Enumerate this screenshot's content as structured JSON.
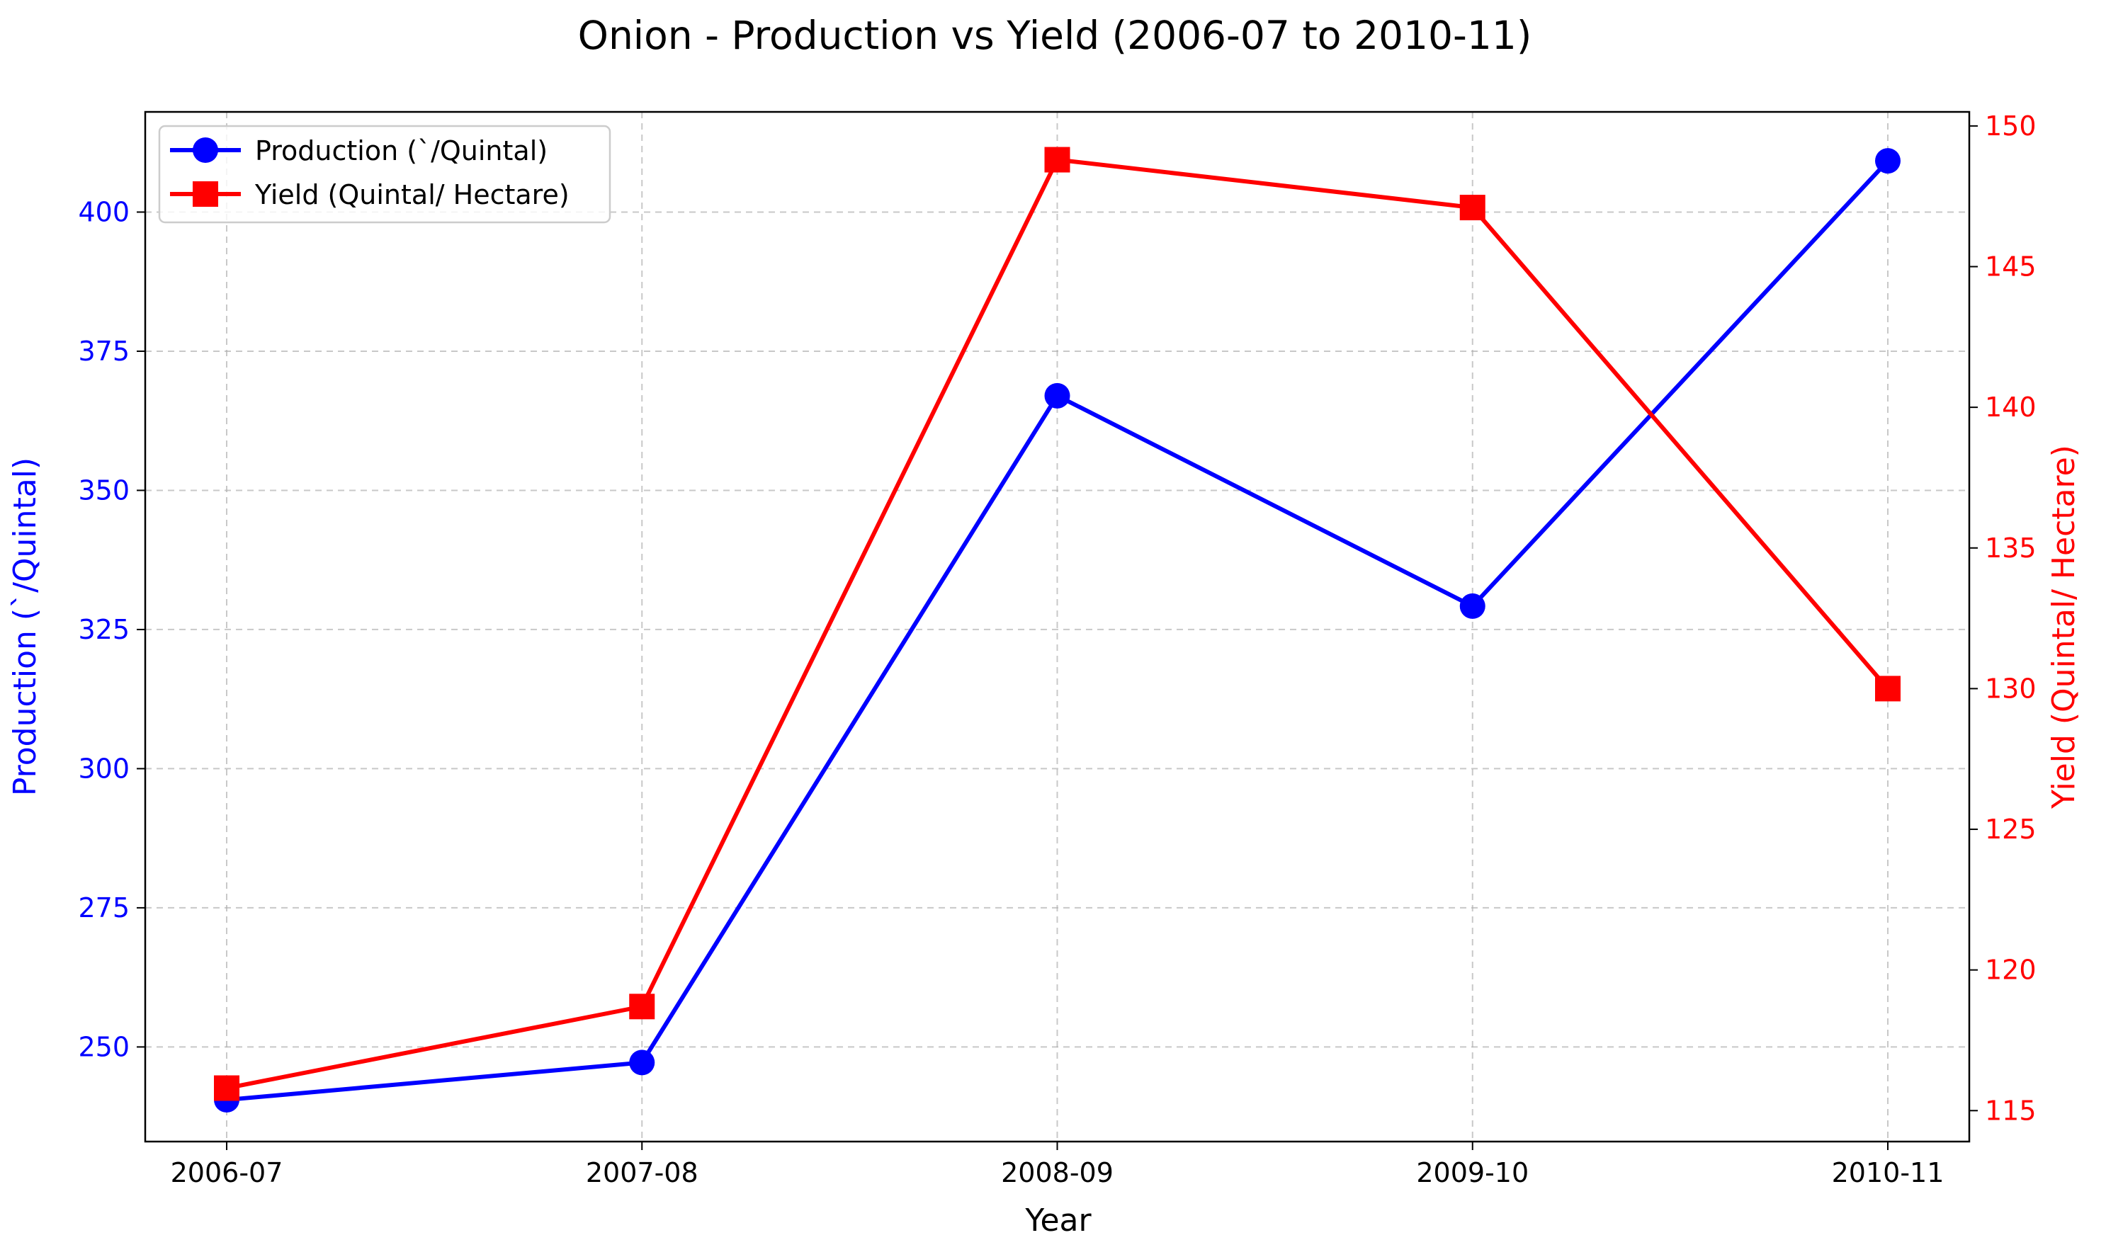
{
  "chart_data": {
    "type": "line",
    "title": "Onion - Production vs Yield (2006-07 to 2010-11)",
    "xlabel": "Year",
    "categories": [
      "2006-07",
      "2007-08",
      "2008-09",
      "2009-10",
      "2010-11"
    ],
    "grid": true,
    "legend_position": "top-left",
    "y_left": {
      "label": "Production (`/Quintal)",
      "ylim": [
        233,
        418
      ],
      "ticks": [
        250,
        275,
        300,
        325,
        350,
        375,
        400
      ],
      "color": "#0000ff"
    },
    "y_right": {
      "label": "Yield (Quintal/ Hectare)",
      "ylim": [
        113.9,
        150.5
      ],
      "ticks": [
        115,
        120,
        125,
        130,
        135,
        140,
        145,
        150
      ],
      "color": "#ff0000"
    },
    "series": [
      {
        "name": "Production (`/Quintal)",
        "axis": "left",
        "marker": "circle",
        "color": "#0000ff",
        "values": [
          240.5,
          247.2,
          367.0,
          329.2,
          409.2
        ]
      },
      {
        "name": "Yield (Quintal/ Hectare)",
        "axis": "right",
        "marker": "square",
        "color": "#ff0000",
        "values": [
          115.8,
          118.7,
          148.8,
          147.1,
          130.0
        ]
      }
    ]
  }
}
